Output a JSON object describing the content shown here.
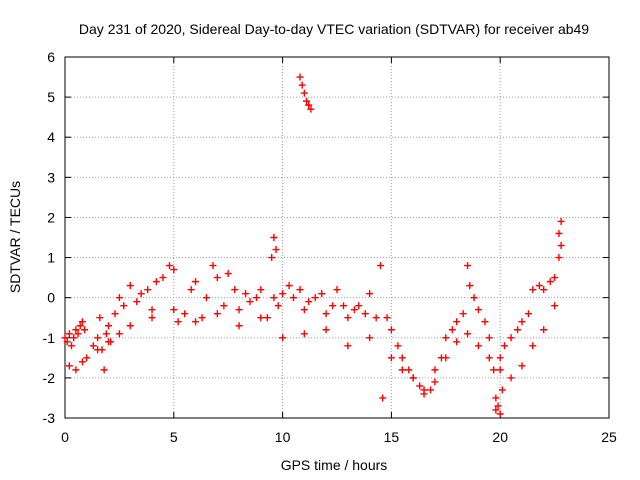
{
  "chart_data": {
    "type": "scatter",
    "title": "Day 231 of 2020, Sidereal Day-to-day VTEC variation (SDTVAR) for receiver ab49",
    "xlabel": "GPS time / hours",
    "ylabel": "SDTVAR / TECUs",
    "xlim": [
      0,
      25
    ],
    "ylim": [
      -3,
      6
    ],
    "xticks": [
      "0",
      "5",
      "10",
      "15",
      "20",
      "25"
    ],
    "yticks": [
      "-3",
      "-2",
      "-1",
      "0",
      "1",
      "2",
      "3",
      "4",
      "5",
      "6"
    ],
    "grid": true,
    "marker": "+",
    "color": "#ff0000",
    "series": [
      {
        "name": "SDTVAR",
        "x": [
          0.0,
          0.1,
          0.2,
          0.3,
          0.4,
          0.5,
          0.6,
          0.7,
          0.8,
          0.9,
          1.0,
          1.3,
          1.5,
          1.6,
          1.7,
          1.8,
          1.9,
          2.0,
          2.1,
          2.3,
          2.5,
          2.7,
          3.0,
          3.3,
          3.5,
          3.8,
          4.0,
          4.2,
          4.5,
          4.8,
          5.0,
          5.2,
          5.5,
          5.8,
          6.0,
          6.3,
          6.5,
          6.8,
          7.0,
          7.3,
          7.5,
          7.8,
          8.0,
          8.3,
          8.5,
          8.8,
          9.0,
          9.3,
          9.5,
          9.6,
          9.8,
          10.0,
          10.3,
          10.5,
          10.8,
          11.0,
          11.2,
          11.5,
          11.8,
          12.0,
          12.3,
          12.5,
          12.8,
          13.0,
          13.3,
          13.5,
          13.8,
          14.0,
          14.3,
          14.5,
          14.6,
          14.8,
          15.0,
          15.3,
          15.5,
          15.8,
          16.0,
          16.3,
          16.5,
          16.8,
          17.0,
          17.3,
          17.5,
          17.8,
          18.0,
          18.3,
          18.5,
          18.6,
          18.8,
          19.0,
          19.3,
          19.5,
          19.7,
          19.8,
          20.0,
          20.2,
          20.5,
          20.8,
          21.0,
          21.3,
          21.5,
          21.8,
          22.0,
          22.3,
          22.5,
          22.7,
          22.8,
          0.2,
          0.5,
          0.8,
          1.5,
          2.0,
          2.5,
          3.0,
          4.0,
          5.0,
          6.0,
          7.0,
          8.0,
          9.0,
          10.0,
          11.0,
          12.0,
          13.0,
          14.0,
          15.0,
          15.5,
          16.0,
          16.5,
          17.0,
          17.5,
          18.0,
          18.5,
          19.0,
          19.5,
          20.0,
          20.5,
          21.0,
          21.5,
          22.0,
          22.5,
          10.8,
          10.9,
          11.0,
          11.1,
          11.2,
          11.3,
          19.8,
          19.9,
          20.0,
          20.1,
          9.6,
          9.7,
          22.7,
          22.8
        ],
        "y": [
          -1.0,
          -1.1,
          -0.9,
          -1.2,
          -1.0,
          -0.8,
          -0.9,
          -0.7,
          -0.6,
          -0.8,
          -1.5,
          -1.2,
          -1.0,
          -0.5,
          -1.3,
          -1.8,
          -0.9,
          -0.7,
          -1.1,
          -0.4,
          0.0,
          -0.2,
          0.3,
          -0.1,
          0.1,
          0.2,
          -0.3,
          0.4,
          0.5,
          0.8,
          0.7,
          -0.6,
          -0.4,
          0.2,
          0.4,
          -0.5,
          0.0,
          0.8,
          0.5,
          -0.2,
          0.6,
          0.2,
          -0.3,
          0.1,
          -0.1,
          0.0,
          0.2,
          -0.5,
          1.0,
          0.0,
          -0.2,
          0.1,
          0.3,
          0.0,
          0.2,
          -0.3,
          -0.1,
          0.0,
          0.1,
          -0.4,
          -0.2,
          0.2,
          -0.2,
          -0.5,
          -0.3,
          -0.2,
          -0.4,
          0.1,
          -0.5,
          0.8,
          -2.5,
          -0.5,
          -0.8,
          -1.2,
          -1.5,
          -1.8,
          -2.0,
          -2.2,
          -2.4,
          -2.3,
          -1.8,
          -1.5,
          -1.0,
          -0.8,
          -0.6,
          -0.4,
          0.8,
          0.3,
          0.0,
          -0.3,
          -0.6,
          -1.0,
          -1.8,
          -2.8,
          -1.5,
          -1.2,
          -1.0,
          -0.8,
          -0.6,
          -0.4,
          0.2,
          0.3,
          0.2,
          0.4,
          0.5,
          1.0,
          1.9,
          -1.7,
          -1.8,
          -1.6,
          -1.3,
          -1.1,
          -0.9,
          -0.7,
          -0.5,
          -0.3,
          -0.6,
          -0.4,
          -0.7,
          -0.5,
          -1.0,
          -0.9,
          -0.8,
          -1.2,
          -1.0,
          -1.5,
          -1.8,
          -2.0,
          -2.3,
          -2.1,
          -1.5,
          -1.1,
          -0.9,
          -1.2,
          -1.5,
          -1.8,
          -2.0,
          -1.7,
          -1.2,
          -0.8,
          -0.2,
          5.5,
          5.3,
          5.1,
          4.9,
          4.8,
          4.7,
          -2.5,
          -2.7,
          -2.9,
          -2.3,
          1.5,
          1.2,
          1.6,
          1.3
        ]
      }
    ]
  }
}
